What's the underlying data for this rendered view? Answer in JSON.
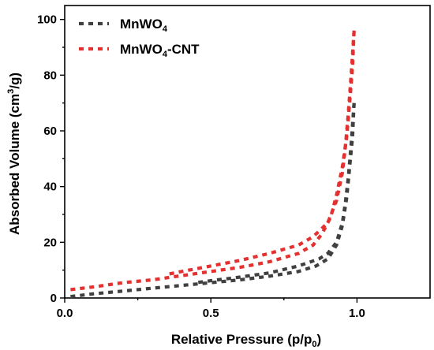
{
  "chart_data": {
    "type": "line",
    "title": "",
    "xlabel": {
      "main": "Relative Pressure (p/p",
      "sub": "0",
      "tail": ")"
    },
    "ylabel": {
      "main": "Absorbed Volume (cm",
      "sup": "3",
      "tail": "/g)"
    },
    "xlim": [
      0.0,
      1.25
    ],
    "ylim": [
      0,
      105
    ],
    "xticks": [
      {
        "value": 0.0,
        "label": "0.0"
      },
      {
        "value": 0.5,
        "label": "0.5"
      },
      {
        "value": 1.0,
        "label": "1.0"
      }
    ],
    "yticks": [
      {
        "value": 0,
        "label": "0"
      },
      {
        "value": 20,
        "label": "20"
      },
      {
        "value": 40,
        "label": "40"
      },
      {
        "value": 60,
        "label": "60"
      },
      {
        "value": 80,
        "label": "80"
      },
      {
        "value": 100,
        "label": "100"
      }
    ],
    "grid": false,
    "legend": "top-left",
    "series": [
      {
        "name": "MnWO4",
        "label_main": "MnWO",
        "label_sub": "4",
        "label_tail": "",
        "color": "#404040",
        "adsorption": {
          "x": [
            0.02,
            0.1,
            0.2,
            0.3,
            0.4,
            0.5,
            0.6,
            0.7,
            0.8,
            0.86,
            0.9,
            0.93,
            0.95,
            0.965,
            0.975,
            0.985,
            0.99
          ],
          "y": [
            0.5,
            1.5,
            2.5,
            3.5,
            4.5,
            5.5,
            6.5,
            7.8,
            9.5,
            11.5,
            14,
            19,
            26,
            36,
            47,
            58,
            70
          ]
        },
        "desorption": {
          "x": [
            0.99,
            0.98,
            0.97,
            0.96,
            0.95,
            0.93,
            0.9,
            0.87,
            0.8,
            0.7,
            0.6,
            0.5,
            0.45
          ],
          "y": [
            70,
            55,
            43,
            34,
            27,
            20,
            16,
            14,
            11.5,
            9,
            7.5,
            6.2,
            5.5
          ]
        }
      },
      {
        "name": "MnWO4-CNT",
        "label_main": "MnWO",
        "label_sub": "4",
        "label_tail": "-CNT",
        "color": "#e53030",
        "adsorption": {
          "x": [
            0.02,
            0.1,
            0.2,
            0.3,
            0.4,
            0.5,
            0.6,
            0.7,
            0.8,
            0.85,
            0.88,
            0.91,
            0.93,
            0.95,
            0.965,
            0.975,
            0.985,
            0.99
          ],
          "y": [
            3,
            4,
            5.5,
            6.5,
            8,
            9.5,
            11,
            13,
            16,
            19,
            23,
            29,
            37,
            47,
            58,
            70,
            83,
            96
          ]
        },
        "desorption": {
          "x": [
            0.99,
            0.98,
            0.97,
            0.96,
            0.95,
            0.93,
            0.9,
            0.85,
            0.8,
            0.7,
            0.6,
            0.5,
            0.4,
            0.35
          ],
          "y": [
            96,
            80,
            66,
            54,
            45,
            35,
            27,
            22,
            19,
            16,
            13.5,
            11.5,
            9.5,
            8.5
          ]
        }
      }
    ]
  }
}
